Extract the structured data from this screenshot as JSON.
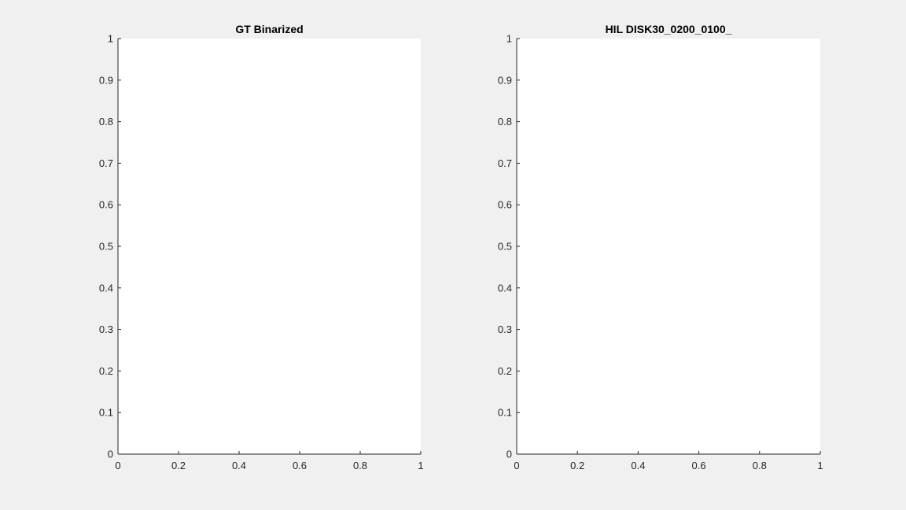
{
  "figure": {
    "background": "#f0f0f0",
    "axes_color": "#262626",
    "plot_background": "#ffffff"
  },
  "chart_data": [
    {
      "type": "scatter",
      "title": "GT Binarized",
      "xlabel": "",
      "ylabel": "",
      "xlim": [
        0,
        1
      ],
      "ylim": [
        0,
        1
      ],
      "xticks": [
        0,
        0.2,
        0.4,
        0.6,
        0.8,
        1
      ],
      "xtick_labels": [
        "0",
        "0.2",
        "0.4",
        "0.6",
        "0.8",
        "1"
      ],
      "yticks": [
        0,
        0.1,
        0.2,
        0.3,
        0.4,
        0.5,
        0.6,
        0.7,
        0.8,
        0.9,
        1
      ],
      "ytick_labels": [
        "0",
        "0.1",
        "0.2",
        "0.3",
        "0.4",
        "0.5",
        "0.6",
        "0.7",
        "0.8",
        "0.9",
        "1"
      ],
      "grid": false,
      "series": []
    },
    {
      "type": "scatter",
      "title": "HIL DISK30_0200_0100_",
      "xlabel": "",
      "ylabel": "",
      "xlim": [
        0,
        1
      ],
      "ylim": [
        0,
        1
      ],
      "xticks": [
        0,
        0.2,
        0.4,
        0.6,
        0.8,
        1
      ],
      "xtick_labels": [
        "0",
        "0.2",
        "0.4",
        "0.6",
        "0.8",
        "1"
      ],
      "yticks": [
        0,
        0.1,
        0.2,
        0.3,
        0.4,
        0.5,
        0.6,
        0.7,
        0.8,
        0.9,
        1
      ],
      "ytick_labels": [
        "0",
        "0.1",
        "0.2",
        "0.3",
        "0.4",
        "0.5",
        "0.6",
        "0.7",
        "0.8",
        "0.9",
        "1"
      ],
      "grid": false,
      "series": []
    }
  ]
}
